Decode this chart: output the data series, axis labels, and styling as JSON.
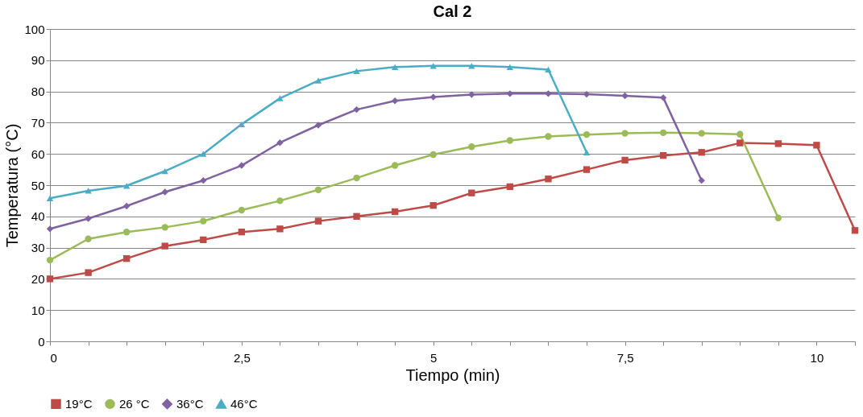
{
  "chart_data": {
    "type": "line",
    "title": "Cal 2",
    "xlabel": "Tiempo (min)",
    "ylabel": "Temperatura (°C)",
    "xlim": [
      0,
      10.5
    ],
    "ylim": [
      0,
      100
    ],
    "xticks": [
      0,
      {
        "value": 0.5,
        "label": null
      },
      {
        "value": 1,
        "label": null
      },
      {
        "value": 1.5,
        "label": null
      },
      {
        "value": 2,
        "label": null
      },
      {
        "value": 2.5,
        "label": "2,5"
      },
      {
        "value": 3,
        "label": null
      },
      {
        "value": 3.5,
        "label": null
      },
      {
        "value": 4,
        "label": null
      },
      {
        "value": 4.5,
        "label": null
      },
      5,
      {
        "value": 5.5,
        "label": null
      },
      {
        "value": 6,
        "label": null
      },
      {
        "value": 6.5,
        "label": null
      },
      {
        "value": 7,
        "label": null
      },
      {
        "value": 7.5,
        "label": "7,5"
      },
      {
        "value": 8,
        "label": null
      },
      {
        "value": 8.5,
        "label": null
      },
      {
        "value": 9,
        "label": null
      },
      {
        "value": 9.5,
        "label": null
      },
      10,
      {
        "value": 10.5,
        "label": null
      }
    ],
    "yticks": [
      0,
      10,
      20,
      30,
      40,
      50,
      60,
      70,
      80,
      90,
      100
    ],
    "grid": "y",
    "legend": "bottom",
    "line_style": "solid",
    "series": [
      {
        "name": "19°C",
        "color": "#be4b48",
        "marker": "square",
        "x": [
          0,
          0.5,
          1,
          1.5,
          2,
          2.5,
          3,
          3.5,
          4,
          4.5,
          5,
          5.5,
          6,
          6.5,
          7,
          7.5,
          8,
          8.5,
          9,
          9.5,
          10,
          10.5
        ],
        "values": [
          20,
          22,
          26.5,
          30.5,
          32.5,
          35,
          36,
          38.5,
          40,
          41.5,
          43.5,
          47.5,
          49.5,
          52,
          55,
          58,
          59.5,
          60.5,
          63.5,
          63.3,
          62.8,
          35.5
        ]
      },
      {
        "name": "26 °C",
        "color": "#9bbb59",
        "marker": "circle",
        "x": [
          0,
          0.5,
          1,
          1.5,
          2,
          2.5,
          3,
          3.5,
          4,
          4.5,
          5,
          5.5,
          6,
          6.5,
          7,
          7.5,
          8,
          8.5,
          9,
          9.5
        ],
        "values": [
          26,
          32.8,
          35,
          36.5,
          38.5,
          42,
          45,
          48.5,
          52.3,
          56.3,
          59.8,
          62.3,
          64.3,
          65.6,
          66.2,
          66.6,
          66.8,
          66.6,
          66.3,
          39.5
        ]
      },
      {
        "name": "36°C",
        "color": "#7f62a0",
        "marker": "diamond",
        "x": [
          0,
          0.5,
          1,
          1.5,
          2,
          2.5,
          3,
          3.5,
          4,
          4.5,
          5,
          5.5,
          6,
          6.5,
          7,
          7.5,
          8,
          8.5
        ],
        "values": [
          36,
          39.3,
          43.3,
          47.8,
          51.5,
          56.3,
          63.6,
          69.2,
          74.2,
          77,
          78.2,
          79,
          79.3,
          79.3,
          79.1,
          78.6,
          78,
          51.5
        ]
      },
      {
        "name": "46°C",
        "color": "#4bacc6",
        "marker": "triangle",
        "x": [
          0,
          0.5,
          1,
          1.5,
          2,
          2.5,
          3,
          3.5,
          4,
          4.5,
          5,
          5.5,
          6,
          6.5,
          7
        ],
        "values": [
          45.8,
          48.2,
          49.8,
          54.5,
          60,
          69.5,
          77.8,
          83.5,
          86.5,
          87.8,
          88.2,
          88.2,
          87.8,
          87,
          60.5
        ]
      }
    ]
  }
}
